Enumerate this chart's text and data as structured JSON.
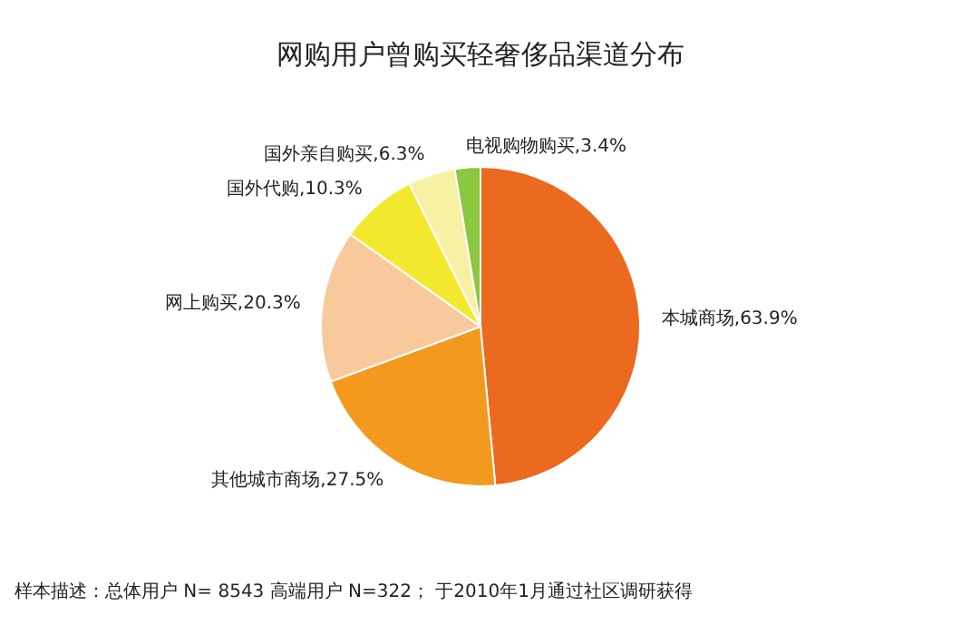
{
  "chart_data": {
    "type": "pie",
    "title": "网购用户曾购买轻奢侈品渠道分布",
    "categories": [
      "本城商场",
      "其他城市商场",
      "网上购买",
      "国外代购",
      "国外亲自购买",
      "电视购物购买"
    ],
    "values": [
      63.9,
      27.5,
      20.3,
      10.3,
      6.3,
      3.4
    ],
    "value_labels": [
      "63.9%",
      "27.5%",
      "20.3%",
      "10.3%",
      "6.3%",
      "3.4%"
    ],
    "colors": [
      "#ec6a1f",
      "#f39a1e",
      "#f8c99b",
      "#f2e92e",
      "#f8f0a2",
      "#8dc63f"
    ],
    "annotations": [
      "样本描述：总体用户 N= 8543  高端用户 N=322；  于2010年1月通过社区调研获得"
    ]
  }
}
